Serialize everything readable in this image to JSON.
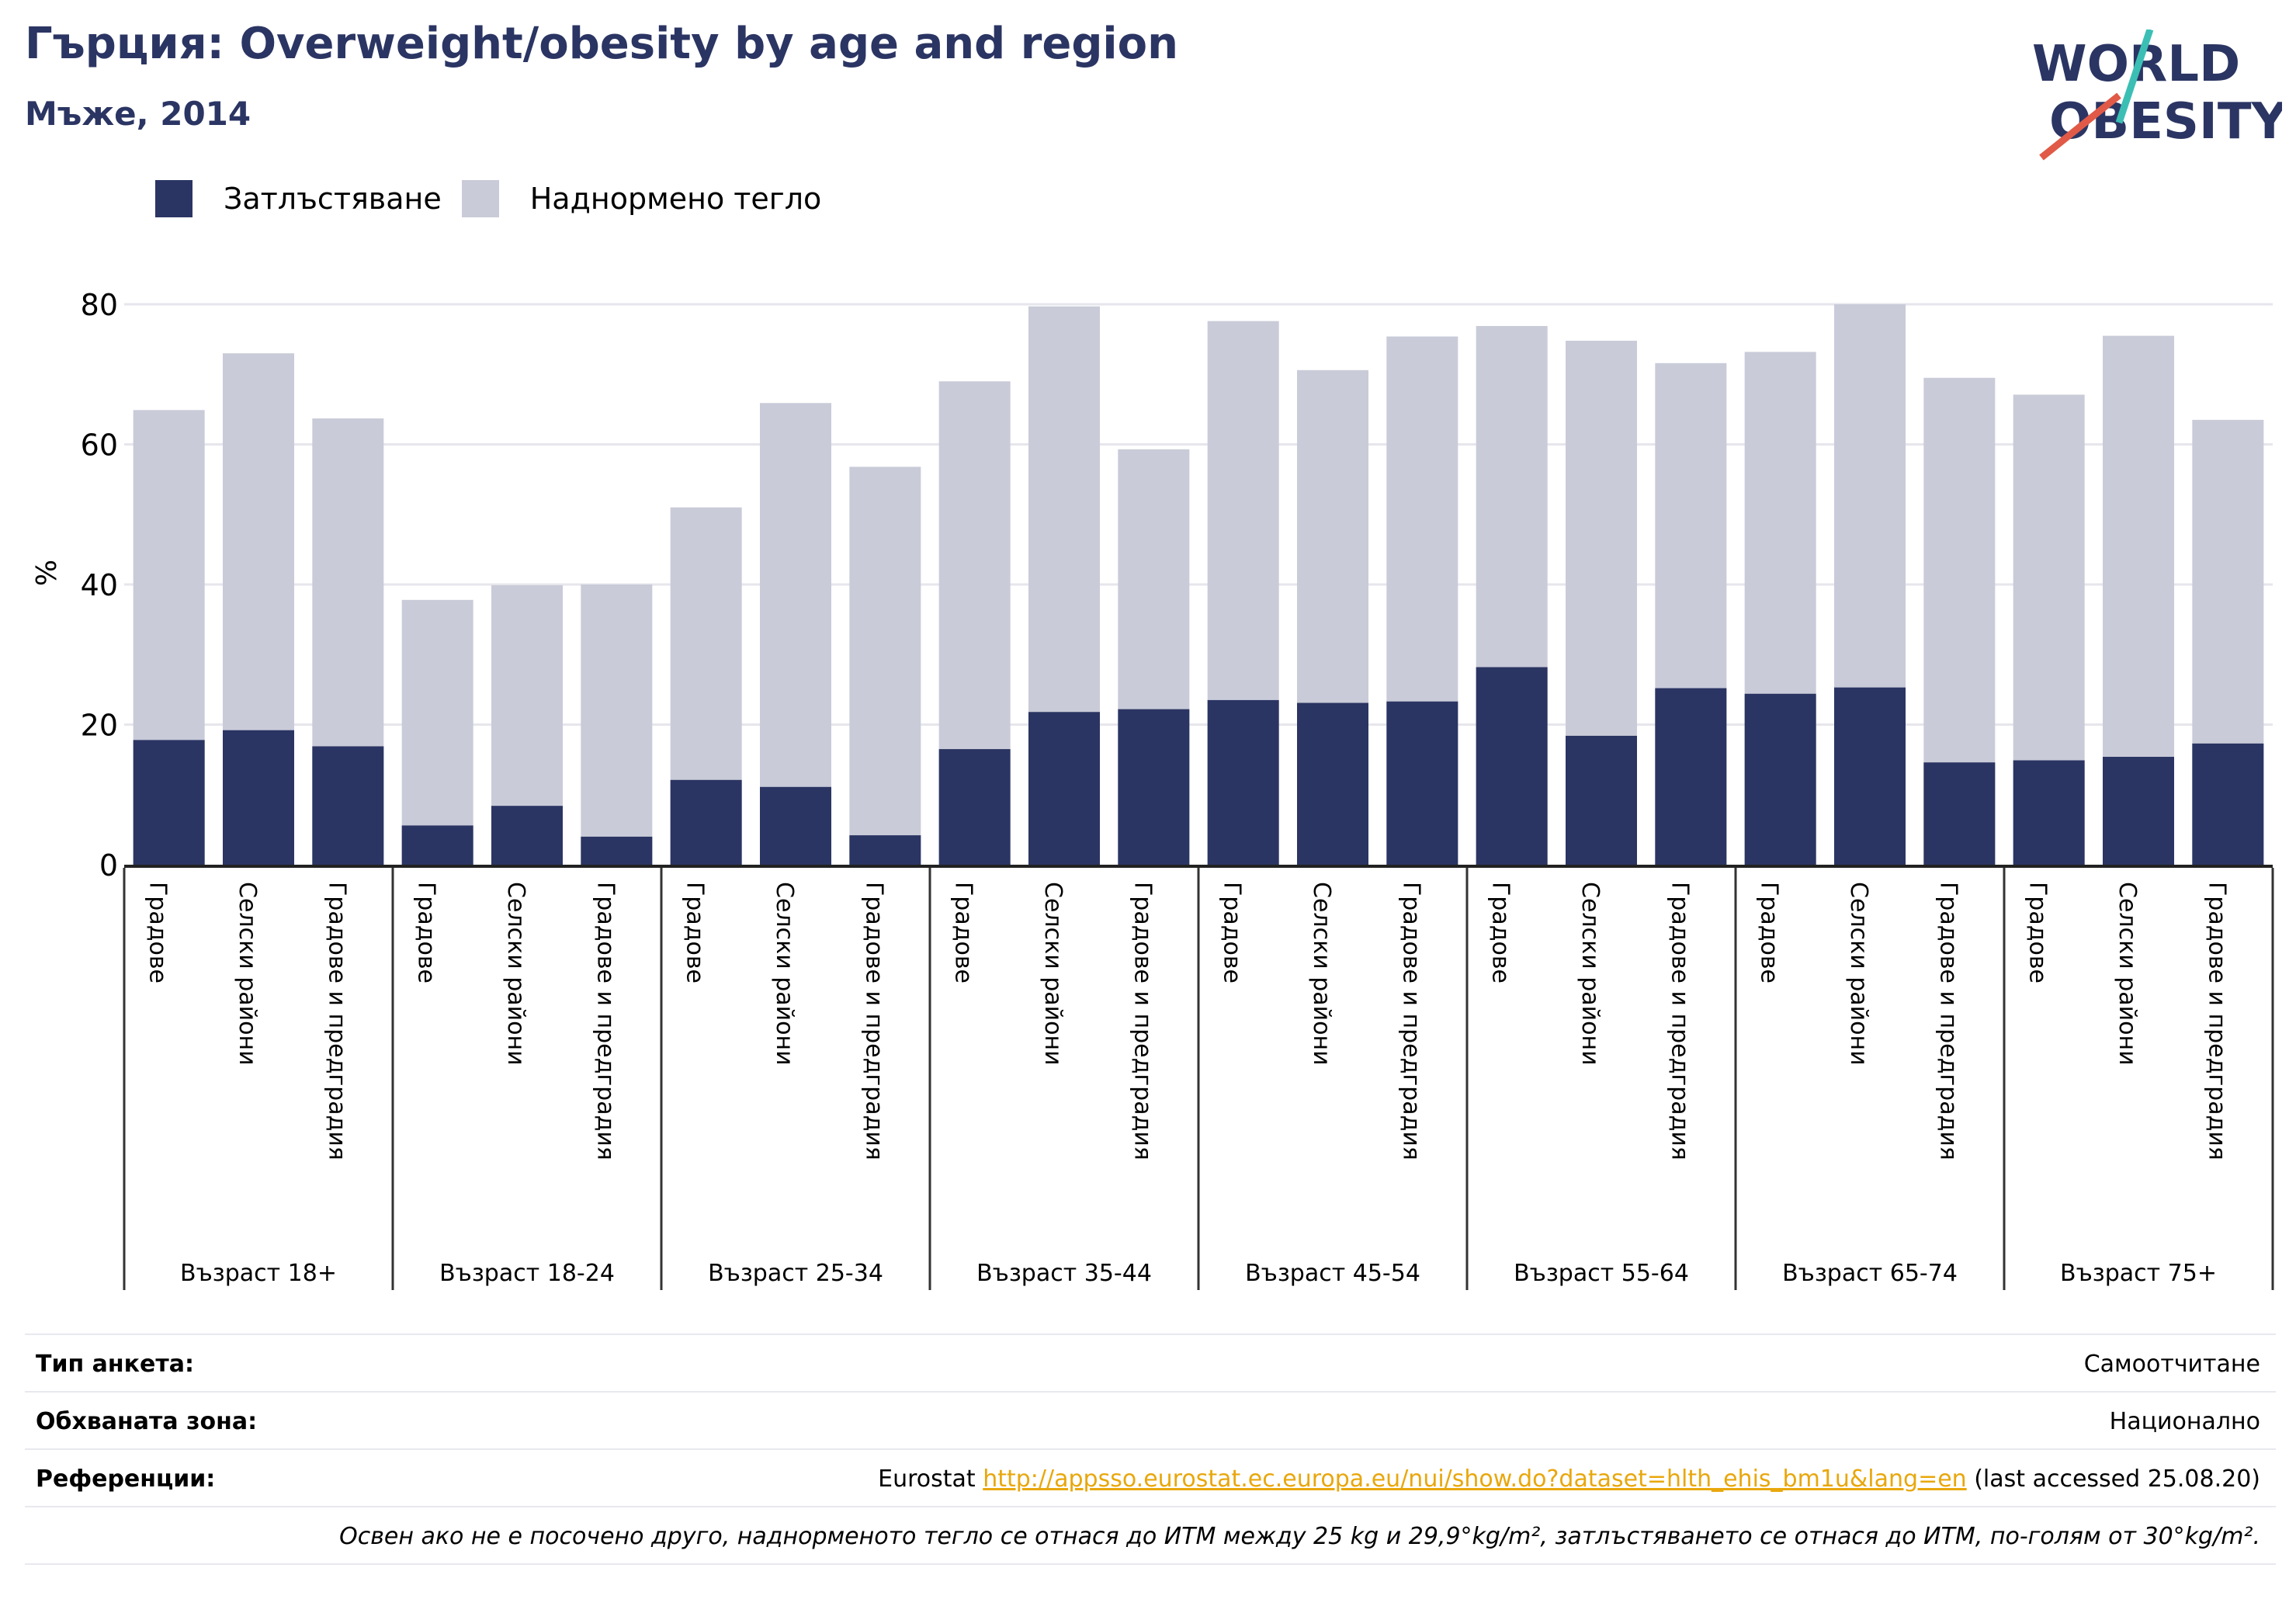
{
  "header": {
    "title": "Гърция: Overweight/obesity by age and region",
    "subtitle": "Мъже, 2014"
  },
  "logo": {
    "line1": "WORLD",
    "line2": "OBESITY",
    "accent_teal": "#3bbfb5",
    "accent_red": "#e05a47",
    "text_color": "#2b3563"
  },
  "legend": {
    "items": [
      {
        "label": "Затлъстяване",
        "color": "#2b3563"
      },
      {
        "label": "Наднормено тегло",
        "color": "#c9cbd8"
      }
    ]
  },
  "chart_data": {
    "type": "bar",
    "stacked": "overlay",
    "ylabel": "%",
    "ylim": [
      0,
      80
    ],
    "yticks": [
      0,
      20,
      40,
      60,
      80
    ],
    "grid": true,
    "legend_position": "top-left",
    "groups": [
      {
        "label": "Възраст 18+",
        "categories": [
          "Градове",
          "Селски райони",
          "Градове и предградия"
        ],
        "obesity": [
          17.8,
          19.2,
          16.9
        ],
        "overweight_total": [
          64.9,
          73.0,
          63.7
        ]
      },
      {
        "label": "Възраст 18-24",
        "categories": [
          "Градове",
          "Селски райони",
          "Градове и предградия"
        ],
        "obesity": [
          5.6,
          8.4,
          4.0
        ],
        "overweight_total": [
          37.8,
          39.9,
          40.0
        ]
      },
      {
        "label": "Възраст 25-34",
        "categories": [
          "Градове",
          "Селски райони",
          "Градове и предградия"
        ],
        "obesity": [
          12.1,
          11.1,
          4.2
        ],
        "overweight_total": [
          51.0,
          65.9,
          56.8
        ]
      },
      {
        "label": "Възраст 35-44",
        "categories": [
          "Градове",
          "Селски райони",
          "Градове и предградия"
        ],
        "obesity": [
          16.5,
          21.8,
          22.2
        ],
        "overweight_total": [
          69.0,
          79.7,
          59.3
        ]
      },
      {
        "label": "Възраст 45-54",
        "categories": [
          "Градове",
          "Селски райони",
          "Градове и предградия"
        ],
        "obesity": [
          23.5,
          23.1,
          23.3
        ],
        "overweight_total": [
          77.6,
          70.6,
          75.4
        ]
      },
      {
        "label": "Възраст 55-64",
        "categories": [
          "Градове",
          "Селски райони",
          "Градове и предградия"
        ],
        "obesity": [
          28.2,
          18.4,
          25.2
        ],
        "overweight_total": [
          76.9,
          74.8,
          71.6
        ]
      },
      {
        "label": "Възраст 65-74",
        "categories": [
          "Градове",
          "Селски райони",
          "Градове и предградия"
        ],
        "obesity": [
          24.4,
          25.3,
          14.6
        ],
        "overweight_total": [
          73.2,
          80.0,
          69.5
        ]
      },
      {
        "label": "Възраст 75+",
        "categories": [
          "Градове",
          "Селски райони",
          "Градове и предградия"
        ],
        "obesity": [
          14.9,
          15.4,
          17.3
        ],
        "overweight_total": [
          67.1,
          75.5,
          63.5
        ]
      }
    ]
  },
  "footer": {
    "survey_type": {
      "label": "Тип анкета:",
      "value": "Самоотчитане"
    },
    "coverage": {
      "label": "Обхваната зона:",
      "value": "Национално"
    },
    "references": {
      "label": "Референции:",
      "prefix": "Eurostat ",
      "link": "http://appsso.eurostat.ec.europa.eu/nui/show.do?dataset=hlth_ehis_bm1u&lang=en",
      "suffix": " (last accessed 25.08.20)"
    },
    "note": "Освен ако не е посочено друго, наднорменото тегло се отнася до ИТМ между 25 kg и 29,9°kg/m², затлъстяването се отнася до ИТМ, по-голям от 30°kg/m²."
  }
}
